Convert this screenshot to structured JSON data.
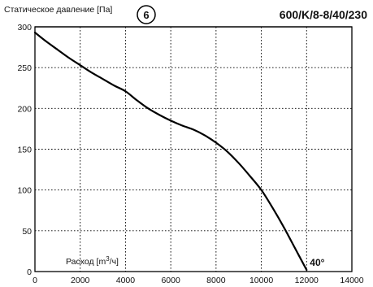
{
  "chart_data": {
    "type": "line",
    "title": "600/K/8-8/40/230",
    "badge": "6",
    "ylabel": "Статическое давление [Па]",
    "xlabel_prefix": "Расход [m",
    "xlabel_sup": "3",
    "xlabel_suffix": "/ч]",
    "xlim": [
      0,
      14000
    ],
    "ylim": [
      0,
      300
    ],
    "xticks": [
      0,
      2000,
      4000,
      6000,
      8000,
      10000,
      12000,
      14000
    ],
    "yticks": [
      0,
      50,
      100,
      150,
      200,
      250,
      300
    ],
    "grid": true,
    "series": [
      {
        "x": [
          0,
          500,
          1000,
          1500,
          2000,
          2500,
          3000,
          3500,
          4000,
          4500,
          5000,
          5500,
          6000,
          6500,
          7000,
          7500,
          8000,
          8500,
          9000,
          9500,
          10000,
          10500,
          11000,
          11500,
          12000
        ],
        "y": [
          293,
          282,
          272,
          262,
          253,
          244,
          236,
          228,
          221,
          210,
          200,
          192,
          185,
          179,
          174,
          167,
          158,
          147,
          133,
          117,
          100,
          78,
          54,
          28,
          2
        ]
      }
    ],
    "annotations": [
      {
        "text": "40°",
        "x": 12000,
        "y": 2
      }
    ]
  }
}
